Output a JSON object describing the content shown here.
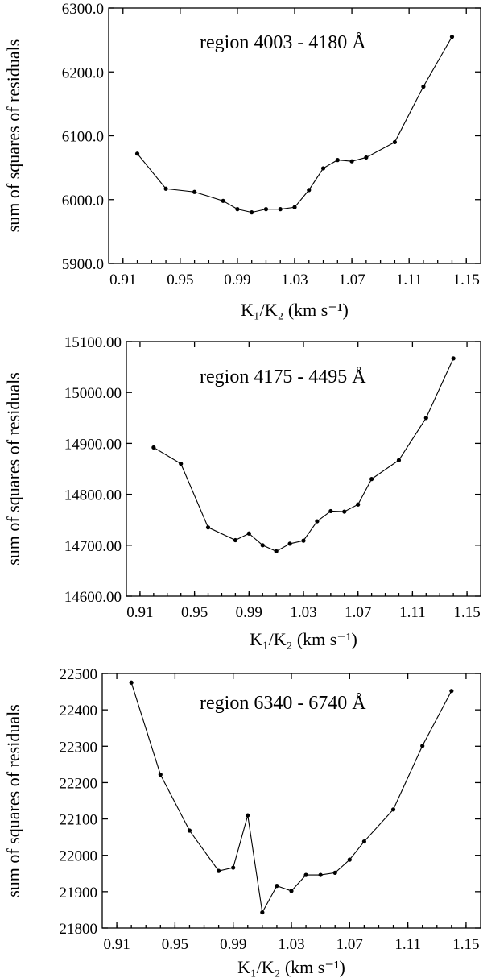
{
  "chart_data": [
    {
      "type": "line",
      "annotation": "region 4003 - 4180 Å",
      "xlabel": "K₁/K₂ (km s⁻¹)",
      "ylabel": "sum of squares of residuals",
      "xlim": [
        0.9,
        1.16
      ],
      "ylim": [
        5900.0,
        6300.0
      ],
      "xticks": [
        "0.91",
        "0.95",
        "0.99",
        "1.03",
        "1.07",
        "1.11",
        "1.15"
      ],
      "yticks": [
        "5900.0",
        "6000.0",
        "6100.0",
        "6200.0",
        "6300.0"
      ],
      "x": [
        0.92,
        0.94,
        0.96,
        0.98,
        0.99,
        1.0,
        1.01,
        1.02,
        1.03,
        1.04,
        1.05,
        1.06,
        1.07,
        1.08,
        1.1,
        1.12,
        1.14
      ],
      "y": [
        6072,
        6017,
        6012,
        5998,
        5985,
        5980,
        5985,
        5985,
        5988,
        6015,
        6049,
        6062,
        6060,
        6066,
        6090,
        6177,
        6255
      ]
    },
    {
      "type": "line",
      "annotation": "region 4175 - 4495 Å",
      "xlabel": "K₁/K₂ (km s⁻¹)",
      "ylabel": "sum of squares of residuals",
      "xlim": [
        0.9,
        1.16
      ],
      "ylim": [
        14600.0,
        15100.0
      ],
      "xticks": [
        "0.91",
        "0.95",
        "0.99",
        "1.03",
        "1.07",
        "1.11",
        "1.15"
      ],
      "yticks": [
        "14600.00",
        "14700.00",
        "14800.00",
        "14900.00",
        "15000.00",
        "15100.00"
      ],
      "x": [
        0.92,
        0.94,
        0.96,
        0.98,
        0.99,
        1.0,
        1.01,
        1.02,
        1.03,
        1.04,
        1.05,
        1.06,
        1.07,
        1.08,
        1.1,
        1.12,
        1.14
      ],
      "y": [
        14892,
        14860,
        14735,
        14710,
        14723,
        14700,
        14688,
        14703,
        14709,
        14747,
        14767,
        14766,
        14780,
        14830,
        14867,
        14950,
        15067
      ]
    },
    {
      "type": "line",
      "annotation": "region 6340 - 6740 Å",
      "xlabel": "K₁/K₂ (km s⁻¹)",
      "ylabel": "sum of squares of residuals",
      "xlim": [
        0.9,
        1.16
      ],
      "ylim": [
        21800,
        22500
      ],
      "xticks": [
        "0.91",
        "0.95",
        "0.99",
        "1.03",
        "1.07",
        "1.11",
        "1.15"
      ],
      "yticks": [
        "21800",
        "21900",
        "22000",
        "22100",
        "22200",
        "22300",
        "22400",
        "22500"
      ],
      "x": [
        0.92,
        0.94,
        0.96,
        0.98,
        0.99,
        1.0,
        1.01,
        1.02,
        1.03,
        1.04,
        1.05,
        1.06,
        1.07,
        1.08,
        1.1,
        1.12,
        1.14
      ],
      "y": [
        22475,
        22222,
        22068,
        21957,
        21966,
        22110,
        21843,
        21916,
        21902,
        21946,
        21946,
        21952,
        21988,
        22038,
        22126,
        22301,
        22452
      ]
    }
  ]
}
